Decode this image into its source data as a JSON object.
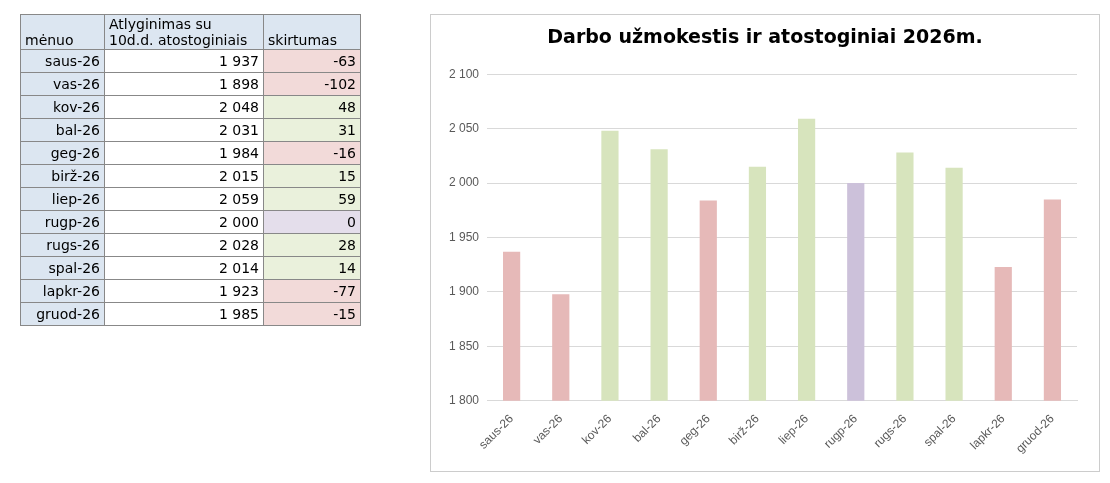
{
  "chart_data": {
    "type": "bar",
    "title": "Darbo užmokestis ir atostoginiai 2026m.",
    "categories": [
      "saus-26",
      "vas-26",
      "kov-26",
      "bal-26",
      "geg-26",
      "birž-26",
      "liep-26",
      "rugp-26",
      "rugs-26",
      "spal-26",
      "lapkr-26",
      "gruod-26"
    ],
    "series": [
      {
        "name": "Atlyginimas su 10d.d. atostoginiais",
        "values": [
          1937,
          1898,
          2048,
          2031,
          1984,
          2015,
          2059,
          2000,
          2028,
          2014,
          1923,
          1985
        ],
        "colors": [
          "#e6b9b8",
          "#e6b9b8",
          "#d7e4bd",
          "#d7e4bd",
          "#e6b9b8",
          "#d7e4bd",
          "#d7e4bd",
          "#ccc1da",
          "#d7e4bd",
          "#d7e4bd",
          "#e6b9b8",
          "#e6b9b8"
        ]
      }
    ],
    "annotations": [
      "mėnuo",
      "skirtumas",
      "1 937",
      "-63",
      "1 898",
      "-102",
      "2 048",
      "48",
      "2 031",
      "31",
      "1 984",
      "-16",
      "2 015",
      "15",
      "2 059",
      "59",
      "2 000",
      "0",
      "2 028",
      "28",
      "2 014",
      "14",
      "1 923",
      "-77",
      "1 985",
      "-15"
    ],
    "ylim": [
      1800,
      2100
    ],
    "yticks": [
      {
        "value": 1800,
        "label": "1 800"
      },
      {
        "value": 1850,
        "label": "1 850"
      },
      {
        "value": 1900,
        "label": "1 900"
      },
      {
        "value": 1950,
        "label": "1 950"
      },
      {
        "value": 2000,
        "label": "2 000"
      },
      {
        "value": 2050,
        "label": "2 050"
      },
      {
        "value": 2100,
        "label": "2 100"
      }
    ],
    "grid": "y"
  }
}
